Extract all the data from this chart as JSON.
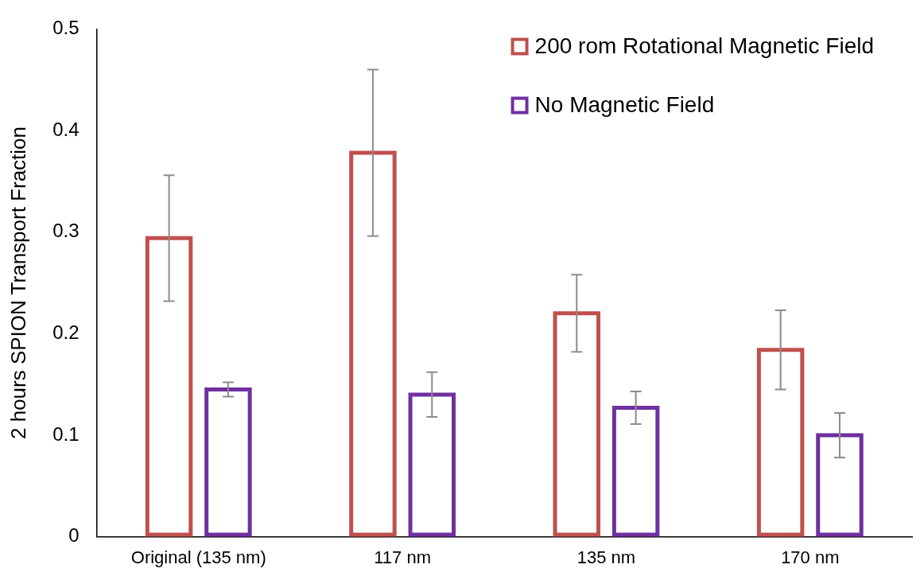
{
  "chart_data": {
    "type": "bar",
    "ylabel": "2 hours SPION Transport Fraction",
    "categories": [
      "Original (135 nm)",
      "117 nm",
      "135 nm",
      "170 nm"
    ],
    "series": [
      {
        "name": "200 rom Rotational Magnetic Field",
        "color": "#c0504d",
        "values": [
          0.294,
          0.378,
          0.22,
          0.184
        ],
        "errors": [
          0.062,
          0.082,
          0.038,
          0.039
        ]
      },
      {
        "name": "No Magnetic Field",
        "color": "#7030a0",
        "values": [
          0.145,
          0.14,
          0.127,
          0.1
        ],
        "errors": [
          0.007,
          0.022,
          0.016,
          0.022
        ]
      }
    ],
    "ylim": [
      0,
      0.5
    ],
    "yticks": [
      0,
      0.1,
      0.2,
      0.3,
      0.4,
      0.5
    ],
    "grid": false,
    "legend": "top right"
  }
}
